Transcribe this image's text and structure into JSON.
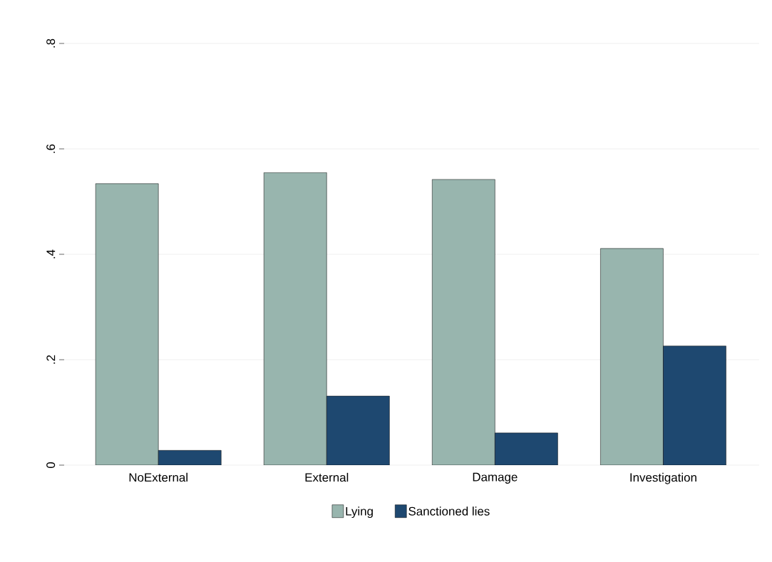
{
  "chart_data": {
    "type": "bar",
    "categories": [
      "NoExternal",
      "External",
      "Damage",
      "Investigation"
    ],
    "series": [
      {
        "name": "Lying",
        "color": "#98b5ae",
        "values": [
          0.534,
          0.555,
          0.542,
          0.411
        ]
      },
      {
        "name": "Sanctioned lies",
        "color": "#1e4870",
        "values": [
          0.028,
          0.131,
          0.061,
          0.226
        ]
      }
    ],
    "ylim": [
      0,
      0.8
    ],
    "yticks": [
      {
        "value": 0,
        "label": "0"
      },
      {
        "value": 0.2,
        "label": ".2"
      },
      {
        "value": 0.4,
        "label": ".4"
      },
      {
        "value": 0.6,
        "label": ".6"
      },
      {
        "value": 0.8,
        "label": ".8"
      }
    ],
    "grid": "y",
    "legend": "bottom"
  }
}
